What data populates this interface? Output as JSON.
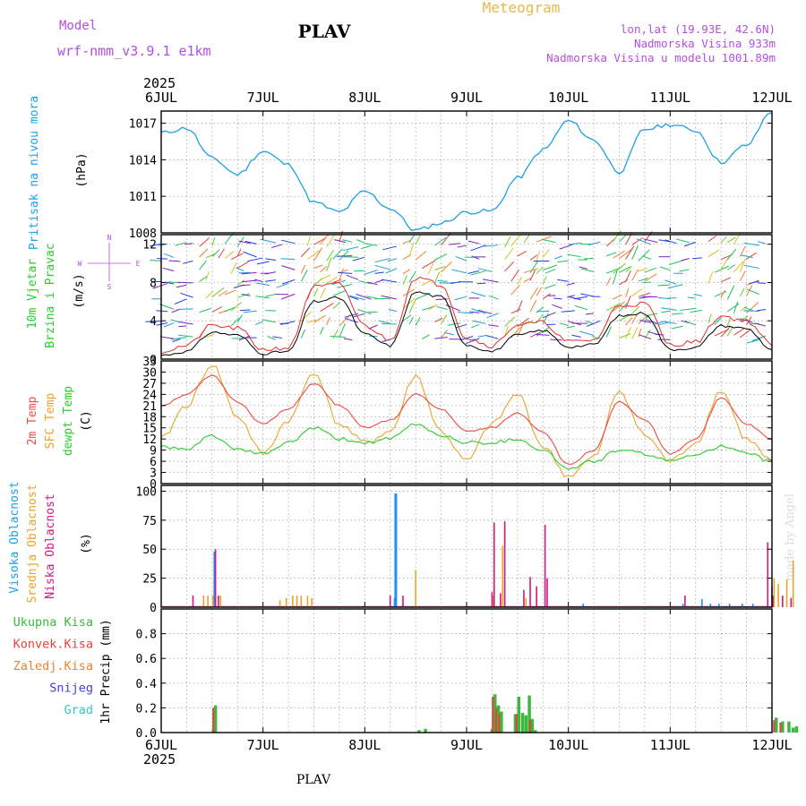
{
  "header": {
    "model_label": "Model",
    "model_name": "wrf-nmm_v3.9.1 e1km",
    "station": "PLAV",
    "product": "Meteogram",
    "coords": "lon,lat (19.93E, 42.6N)",
    "elevation": "Nadmorska Visina 933m",
    "model_elevation": "Nadmorska Visina u modelu 1001.89m",
    "year": "2025"
  },
  "footer": {
    "year": "2025",
    "station": "PLAV",
    "watermark": "made by Angel"
  },
  "time_axis": {
    "labels": [
      "6JUL",
      "7JUL",
      "8JUL",
      "9JUL",
      "10JUL",
      "11JUL",
      "12JUL"
    ]
  },
  "compass": {
    "n": "N",
    "s": "S",
    "e": "E",
    "w": "W"
  },
  "colors": {
    "pressure": "#1e9fe8",
    "wind_speed": "#000000",
    "wind_gust": "#e0302a",
    "temp2m": "#ee4a44",
    "sfc_temp": "#e8a42c",
    "dewpt": "#2ccc2c",
    "cloud_high": "#1e90ff",
    "cloud_mid": "#e8a42c",
    "cloud_low": "#d01880",
    "precip_total": "#3cb83c",
    "precip_conv": "#e8403c",
    "precip_frz": "#f08030",
    "snow": "#4040e0",
    "hail": "#30c8c8"
  },
  "panels": {
    "pressure": {
      "label": "Pritisak na nivou mora",
      "unit": "(hPa)"
    },
    "wind": {
      "label1": "10m Vjetar",
      "label2": "Brzina i Pravac",
      "unit": "(m/s)"
    },
    "temp": {
      "label1": "2m Temp",
      "label2": "SFC Temp",
      "label3": "dewpt Temp",
      "unit": "(C)"
    },
    "cloud": {
      "label1": "Visoka Oblacnost",
      "label2": "Srednja Oblacnost",
      "label3": "Niska Oblacnost",
      "unit": "(%)"
    },
    "precip": {
      "unit": "1hr Precip (mm)",
      "legend": [
        "Ukupna Kisa",
        "Konvek.Kisa",
        "Zaledj.Kisa",
        "Snijeg",
        "Grad"
      ]
    }
  },
  "chart_data": [
    {
      "type": "line",
      "title": "Pritisak na nivou mora",
      "ylabel": "(hPa)",
      "ylim": [
        1008,
        1018
      ],
      "yticks": [
        1008,
        1011,
        1014,
        1017
      ],
      "x": [
        "6JUL 00h",
        "6JUL 06h",
        "6JUL 12h",
        "6JUL 18h",
        "7JUL 00h",
        "7JUL 06h",
        "7JUL 12h",
        "7JUL 18h",
        "8JUL 00h",
        "8JUL 06h",
        "8JUL 12h",
        "8JUL 18h",
        "9JUL 00h",
        "9JUL 06h",
        "9JUL 12h",
        "9JUL 18h",
        "10JUL 00h",
        "10JUL 06h",
        "10JUL 12h",
        "10JUL 18h",
        "11JUL 00h",
        "11JUL 06h",
        "11JUL 12h",
        "11JUL 18h",
        "12JUL 00h"
      ],
      "series": [
        {
          "values": [
            1016.2,
            1016.6,
            1014.1,
            1012.8,
            1014.7,
            1013.6,
            1010.5,
            1009.7,
            1011.4,
            1010.0,
            1008.2,
            1008.8,
            1009.7,
            1009.8,
            1012.5,
            1014.8,
            1017.2,
            1015.6,
            1013.0,
            1016.5,
            1016.9,
            1016.4,
            1013.8,
            1015.2,
            1018.0
          ]
        }
      ]
    },
    {
      "type": "line",
      "title": "10m Vjetar Brzina i Pravac",
      "ylabel": "(m/s)",
      "ylim": [
        0,
        13
      ],
      "yticks": [
        0,
        4,
        8,
        12
      ],
      "x": [
        "6JUL 00h",
        "6JUL 06h",
        "6JUL 12h",
        "6JUL 18h",
        "7JUL 00h",
        "7JUL 06h",
        "7JUL 12h",
        "7JUL 18h",
        "8JUL 00h",
        "8JUL 06h",
        "8JUL 12h",
        "8JUL 18h",
        "9JUL 00h",
        "9JUL 06h",
        "9JUL 12h",
        "9JUL 18h",
        "10JUL 00h",
        "10JUL 06h",
        "10JUL 12h",
        "10JUL 18h",
        "11JUL 00h",
        "11JUL 06h",
        "11JUL 12h",
        "11JUL 18h",
        "12JUL 00h"
      ],
      "series": [
        {
          "name": "speed",
          "values": [
            0.4,
            0.8,
            2.8,
            2.5,
            0.6,
            0.8,
            6.0,
            6.4,
            2.6,
            1.4,
            7.0,
            6.5,
            1.5,
            0.8,
            2.5,
            3.0,
            1.3,
            1.5,
            4.5,
            4.8,
            1.0,
            1.2,
            3.5,
            3.2,
            1.0
          ]
        },
        {
          "name": "gust",
          "values": [
            0.8,
            1.4,
            3.5,
            3.2,
            1.0,
            1.2,
            7.5,
            7.8,
            3.5,
            2.0,
            8.5,
            7.8,
            2.2,
            1.4,
            3.6,
            3.8,
            1.8,
            2.0,
            5.6,
            5.8,
            1.5,
            1.8,
            4.5,
            4.0,
            1.5
          ]
        }
      ]
    },
    {
      "type": "line",
      "title": "2m Temp / SFC Temp / dewpt Temp",
      "ylabel": "(C)",
      "ylim": [
        0,
        33
      ],
      "yticks": [
        0,
        3,
        6,
        9,
        12,
        15,
        18,
        21,
        24,
        27,
        30,
        33
      ],
      "x": [
        "6JUL 00h",
        "6JUL 06h",
        "6JUL 12h",
        "6JUL 18h",
        "7JUL 00h",
        "7JUL 06h",
        "7JUL 12h",
        "7JUL 18h",
        "8JUL 00h",
        "8JUL 06h",
        "8JUL 12h",
        "8JUL 18h",
        "9JUL 00h",
        "9JUL 06h",
        "9JUL 12h",
        "9JUL 18h",
        "10JUL 00h",
        "10JUL 06h",
        "10JUL 12h",
        "10JUL 18h",
        "11JUL 00h",
        "11JUL 06h",
        "11JUL 12h",
        "11JUL 18h",
        "12JUL 00h"
      ],
      "series": [
        {
          "name": "2m Temp",
          "values": [
            21,
            24,
            29,
            22,
            16,
            20,
            27,
            21,
            15,
            17,
            24,
            20,
            14,
            15,
            19,
            14,
            5,
            9,
            22,
            17,
            8,
            12,
            23,
            16,
            12
          ]
        },
        {
          "name": "SFC Temp",
          "values": [
            12,
            21,
            32,
            18,
            8,
            17,
            30,
            16,
            11,
            14,
            29,
            14,
            6,
            16,
            24,
            10,
            2,
            7,
            25,
            13,
            6,
            11,
            25,
            12,
            6
          ]
        },
        {
          "name": "dewpt Temp",
          "values": [
            10,
            9,
            13,
            9,
            8,
            11,
            15,
            12,
            11,
            12,
            16,
            13,
            11,
            11,
            12,
            9,
            4,
            6,
            9,
            8,
            6,
            8,
            10,
            8,
            6
          ]
        }
      ]
    },
    {
      "type": "bar",
      "title": "Visoka / Srednja / Niska Oblacnost",
      "ylabel": "(%)",
      "ylim": [
        0,
        105
      ],
      "yticks": [
        0,
        25,
        50,
        75,
        100
      ],
      "series": [
        {
          "name": "Visoka Oblacnost",
          "x_hours": [
            12.5,
            55.0,
            55.3,
            99.5,
            123.0,
            127.5,
            129.5,
            131.5,
            134.0,
            137.0,
            139.5,
            144.0,
            167.0
          ],
          "values": [
            48,
            8,
            98,
            3,
            3,
            7,
            3,
            3,
            3,
            3,
            3,
            18,
            3
          ]
        },
        {
          "name": "Srednja Oblacnost",
          "x_hours": [
            10.0,
            11.0,
            12.2,
            14.0,
            28.0,
            29.5,
            31.0,
            32.0,
            33.0,
            34.5,
            35.5,
            60.0,
            78.3,
            80.5,
            86.0,
            144.5,
            145.5,
            147.5,
            149.0
          ],
          "values": [
            10,
            10,
            10,
            10,
            6,
            8,
            10,
            10,
            10,
            10,
            8,
            32,
            10,
            53,
            8,
            25,
            20,
            24,
            40
          ]
        },
        {
          "name": "Niska Oblacnost",
          "x_hours": [
            7.5,
            12.8,
            13.5,
            54.0,
            57.0,
            78.0,
            78.5,
            80.0,
            81.0,
            85.5,
            87.0,
            88.5,
            90.5,
            91.0,
            123.5,
            143.0,
            144.2,
            146.5,
            148.5
          ],
          "values": [
            10,
            50,
            10,
            10,
            10,
            13,
            73,
            12,
            74,
            15,
            26,
            18,
            71,
            25,
            10,
            56,
            10,
            10,
            8
          ]
        }
      ]
    },
    {
      "type": "bar",
      "title": "1hr Precip",
      "ylabel": "1hr Precip (mm)",
      "ylim": [
        0,
        1.0
      ],
      "yticks": [
        0.0,
        0.2,
        0.4,
        0.6,
        0.8
      ],
      "series": [
        {
          "name": "Ukupna Kisa",
          "x_hours": [
            12.3,
            12.8,
            60.8,
            62.3,
            78.0,
            78.7,
            79.5,
            80.2,
            83.5,
            84.3,
            85.2,
            86.0,
            86.8,
            87.5,
            88.2,
            145.0,
            146.5,
            148.0,
            149.0,
            149.8
          ],
          "values": [
            0.03,
            0.22,
            0.02,
            0.03,
            0.03,
            0.31,
            0.22,
            0.17,
            0.15,
            0.29,
            0.16,
            0.14,
            0.3,
            0.11,
            0.02,
            0.12,
            0.09,
            0.09,
            0.04,
            0.05
          ]
        },
        {
          "name": "Konvek.Kisa",
          "x_hours": [
            12.8,
            78.7,
            79.5,
            80.2,
            84.3,
            87.5,
            145.0,
            146.5
          ],
          "values": [
            0.2,
            0.29,
            0.2,
            0.15,
            0.15,
            0.1,
            0.1,
            0.08
          ]
        }
      ]
    }
  ]
}
